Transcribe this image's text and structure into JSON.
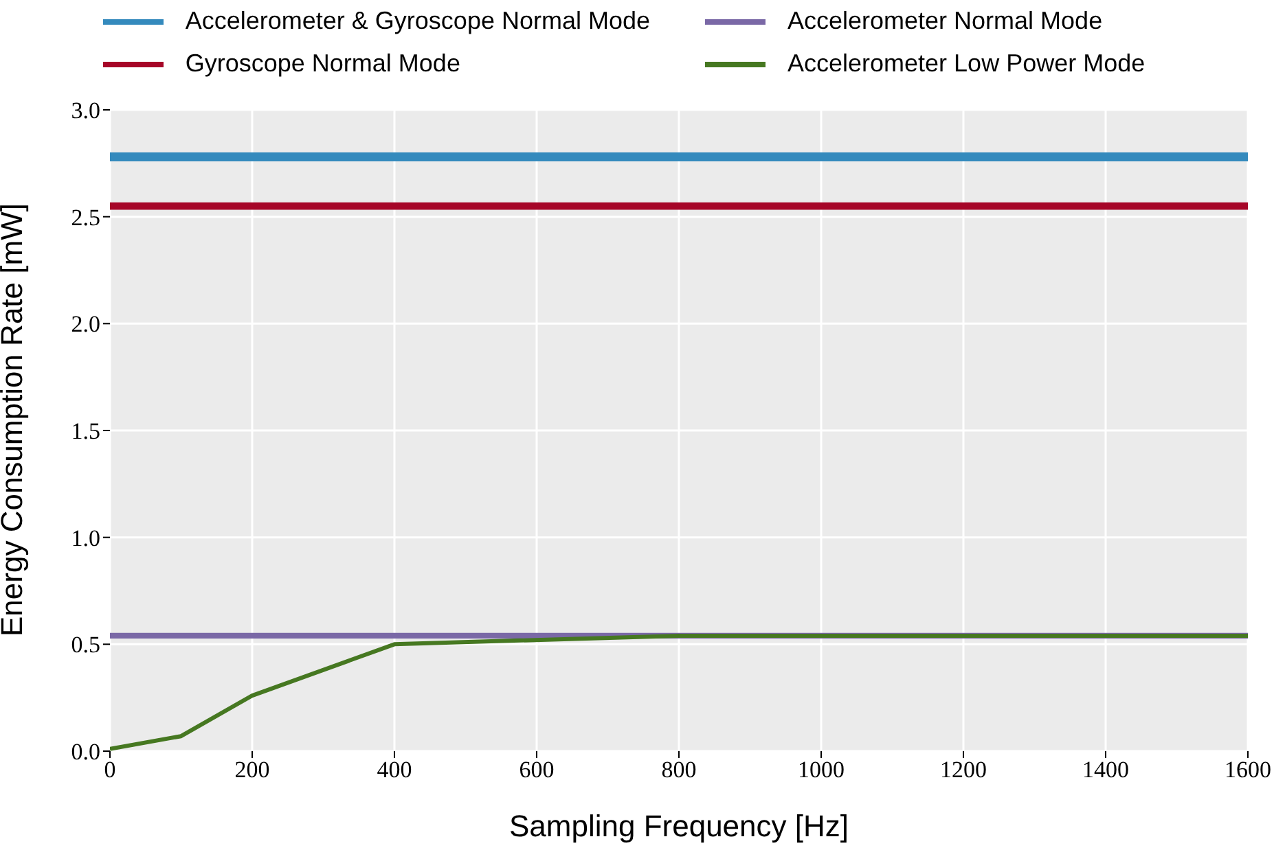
{
  "chart_data": {
    "type": "line",
    "xlabel": "Sampling Frequency [Hz]",
    "ylabel": "Energy Consumption Rate [mW]",
    "xlim": [
      0,
      1600
    ],
    "xticks": [
      0,
      200,
      400,
      600,
      800,
      1000,
      1200,
      1400,
      1600
    ],
    "ylim": [
      0,
      3
    ],
    "yticks": [
      {
        "value": 0,
        "label": "0.0"
      },
      {
        "value": 0.5,
        "label": "0.5"
      },
      {
        "value": 1,
        "label": "1.0"
      },
      {
        "value": 1.5,
        "label": "1.5"
      },
      {
        "value": 2,
        "label": "2.0"
      },
      {
        "value": 2.5,
        "label": "2.5"
      },
      {
        "value": 3,
        "label": "3.0"
      }
    ],
    "grid": true,
    "legend": "top",
    "line_style": "solid",
    "marker": "none",
    "series": [
      {
        "name": "Accelerometer & Gyroscope Normal Mode",
        "color": "#348abd",
        "x": [
          0,
          1600
        ],
        "values": [
          2.78,
          2.78
        ]
      },
      {
        "name": "Gyroscope Normal Mode",
        "color": "#a60628",
        "x": [
          0,
          1600
        ],
        "values": [
          2.55,
          2.55
        ]
      },
      {
        "name": "Accelerometer Normal Mode",
        "color": "#7a68a6",
        "x": [
          0,
          1600
        ],
        "values": [
          0.54,
          0.54
        ]
      },
      {
        "name": "Accelerometer Low Power Mode",
        "color": "#467821",
        "x": [
          0,
          100,
          200,
          400,
          800,
          1600
        ],
        "values": [
          0.01,
          0.07,
          0.26,
          0.5,
          0.54,
          0.54
        ]
      }
    ]
  }
}
